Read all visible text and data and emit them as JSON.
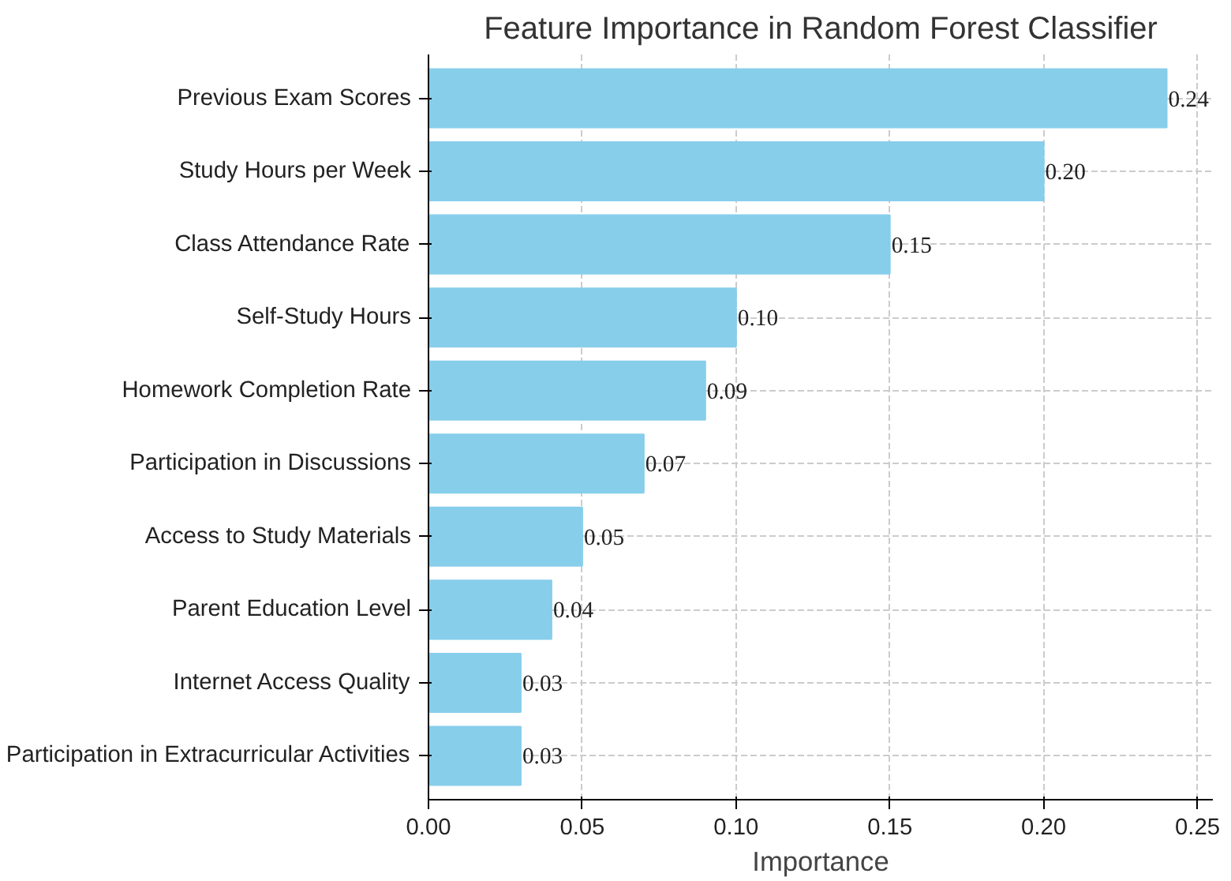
{
  "chart_data": {
    "type": "bar",
    "orientation": "horizontal",
    "title": "Feature Importance in Random Forest Classifier",
    "xlabel": "Importance",
    "categories": [
      "Previous Exam Scores",
      "Study Hours per Week",
      "Class Attendance Rate",
      "Self-Study Hours",
      "Homework Completion Rate",
      "Participation in Discussions",
      "Access to Study Materials",
      "Parent Education Level",
      "Internet Access Quality",
      "Participation in Extracurricular Activities"
    ],
    "values": [
      0.24,
      0.2,
      0.15,
      0.1,
      0.09,
      0.07,
      0.05,
      0.04,
      0.03,
      0.03
    ],
    "value_labels": [
      "0.24",
      "0.20",
      "0.15",
      "0.10",
      "0.09",
      "0.07",
      "0.05",
      "0.04",
      "0.03",
      "0.03"
    ],
    "color": "#87ceeb",
    "xlim": [
      0,
      0.255
    ],
    "xticks": [
      {
        "value": 0,
        "label": "0.00"
      },
      {
        "value": 0.05,
        "label": "0.05"
      },
      {
        "value": 0.1,
        "label": "0.10"
      },
      {
        "value": 0.15,
        "label": "0.15"
      },
      {
        "value": 0.2,
        "label": "0.20"
      },
      {
        "value": 0.25,
        "label": "0.25"
      }
    ],
    "grid": true
  }
}
